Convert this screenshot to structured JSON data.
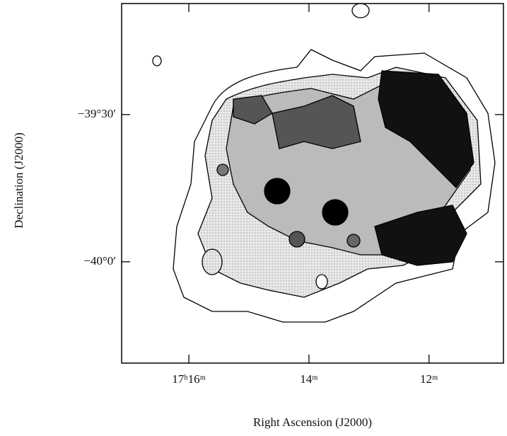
{
  "chart_data": {
    "type": "contour-map",
    "xlabel": "Right Ascension (J2000)",
    "ylabel": "Declination (J2000)",
    "xlim": [
      17.12,
      10.76
    ],
    "xticks": [
      {
        "value": 16,
        "label": "17ʰ16ᵐ"
      },
      {
        "value": 14,
        "label": "14ᵐ"
      },
      {
        "value": 12,
        "label": "12ᵐ"
      }
    ],
    "ylim": [
      -40.344,
      -39.123
    ],
    "yticks": [
      {
        "value": -39.5,
        "label": "−39°30′"
      },
      {
        "value": -40.0,
        "label": "−40°0′"
      }
    ]
  }
}
